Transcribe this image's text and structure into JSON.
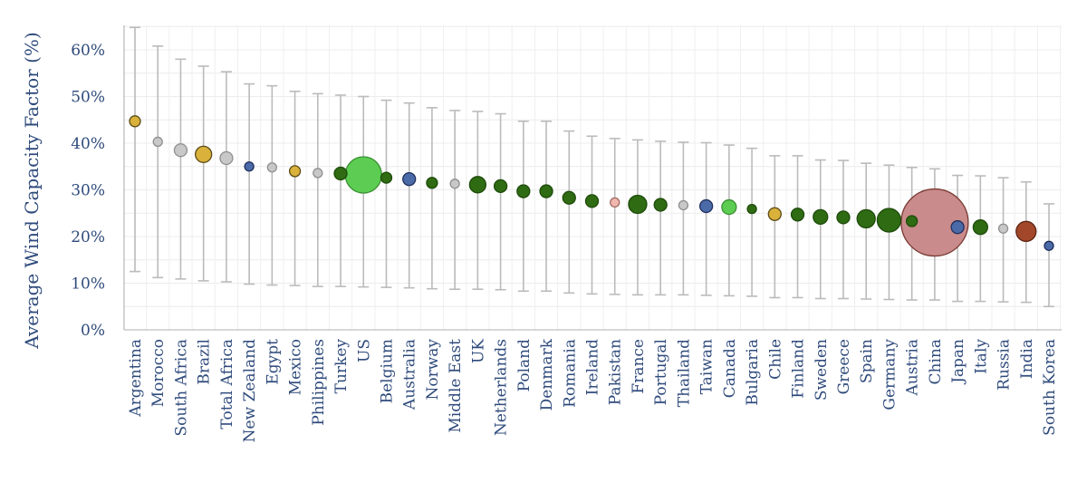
{
  "chart_data": {
    "type": "scatter",
    "title": "",
    "xlabel": "",
    "ylabel": "Average Wind Capacity Factor (%)",
    "ylim": [
      0,
      65
    ],
    "yticks": [
      "0%",
      "10%",
      "20%",
      "30%",
      "40%",
      "50%",
      "60%"
    ],
    "ytick_values": [
      0,
      10,
      20,
      30,
      40,
      50,
      60
    ],
    "grid": true,
    "legend": "none",
    "colors": {
      "dark_green": "#2e6b12",
      "light_green": "#5ccd52",
      "gold": "#d9b13b",
      "grey": "#c8c8c8",
      "blue": "#4b6aa8",
      "pink": "#f2b8b0",
      "rose": "#c98b8b",
      "brown": "#a3472a",
      "whisker": "#bbbbbb",
      "label": "#2f4b7c"
    },
    "points": [
      {
        "category": "Argentina",
        "avg": 44.7,
        "min": 12.5,
        "max": 64.8,
        "size": 6,
        "color": "gold"
      },
      {
        "category": "Morocco",
        "avg": 40.3,
        "min": 11.2,
        "max": 60.8,
        "size": 5,
        "color": "grey"
      },
      {
        "category": "South Africa",
        "avg": 38.5,
        "min": 10.9,
        "max": 58.0,
        "size": 7,
        "color": "grey"
      },
      {
        "category": "Brazil",
        "avg": 37.6,
        "min": 10.5,
        "max": 56.5,
        "size": 9,
        "color": "gold"
      },
      {
        "category": "Total Africa",
        "avg": 36.8,
        "min": 10.3,
        "max": 55.3,
        "size": 7,
        "color": "grey"
      },
      {
        "category": "New Zealand",
        "avg": 35.0,
        "min": 9.8,
        "max": 52.7,
        "size": 5,
        "color": "blue"
      },
      {
        "category": "Egypt",
        "avg": 34.8,
        "min": 9.6,
        "max": 52.3,
        "size": 5,
        "color": "grey"
      },
      {
        "category": "Mexico",
        "avg": 34.0,
        "min": 9.5,
        "max": 51.1,
        "size": 6,
        "color": "gold"
      },
      {
        "category": "Philippines",
        "avg": 33.6,
        "min": 9.3,
        "max": 50.6,
        "size": 5,
        "color": "grey"
      },
      {
        "category": "Turkey",
        "avg": 33.5,
        "min": 9.3,
        "max": 50.3,
        "size": 7,
        "color": "dark_green"
      },
      {
        "category": "US",
        "avg": 33.2,
        "min": 9.2,
        "max": 50.0,
        "size": 20,
        "color": "light_green"
      },
      {
        "category": "Belgium",
        "avg": 32.6,
        "min": 9.1,
        "max": 49.2,
        "size": 6,
        "color": "dark_green"
      },
      {
        "category": "Australia",
        "avg": 32.3,
        "min": 9.0,
        "max": 48.6,
        "size": 7,
        "color": "blue"
      },
      {
        "category": "Norway",
        "avg": 31.5,
        "min": 8.8,
        "max": 47.6,
        "size": 6,
        "color": "dark_green"
      },
      {
        "category": "Middle East",
        "avg": 31.3,
        "min": 8.7,
        "max": 47.0,
        "size": 5,
        "color": "grey"
      },
      {
        "category": "UK",
        "avg": 31.1,
        "min": 8.7,
        "max": 46.8,
        "size": 9,
        "color": "dark_green"
      },
      {
        "category": "Netherlands",
        "avg": 30.8,
        "min": 8.6,
        "max": 46.3,
        "size": 7,
        "color": "dark_green"
      },
      {
        "category": "Poland",
        "avg": 29.7,
        "min": 8.3,
        "max": 44.7,
        "size": 7,
        "color": "dark_green"
      },
      {
        "category": "Denmark",
        "avg": 29.7,
        "min": 8.3,
        "max": 44.7,
        "size": 7,
        "color": "dark_green"
      },
      {
        "category": "Romania",
        "avg": 28.3,
        "min": 7.9,
        "max": 42.6,
        "size": 7,
        "color": "dark_green"
      },
      {
        "category": "Ireland",
        "avg": 27.6,
        "min": 7.7,
        "max": 41.5,
        "size": 7,
        "color": "dark_green"
      },
      {
        "category": "Pakistan",
        "avg": 27.3,
        "min": 7.6,
        "max": 41.0,
        "size": 5,
        "color": "pink"
      },
      {
        "category": "France",
        "avg": 26.9,
        "min": 7.5,
        "max": 40.7,
        "size": 10,
        "color": "dark_green"
      },
      {
        "category": "Portugal",
        "avg": 26.8,
        "min": 7.5,
        "max": 40.4,
        "size": 7,
        "color": "dark_green"
      },
      {
        "category": "Thailand",
        "avg": 26.7,
        "min": 7.5,
        "max": 40.2,
        "size": 5,
        "color": "grey"
      },
      {
        "category": "Taiwan",
        "avg": 26.5,
        "min": 7.4,
        "max": 40.1,
        "size": 7,
        "color": "blue"
      },
      {
        "category": "Canada",
        "avg": 26.3,
        "min": 7.3,
        "max": 39.6,
        "size": 8,
        "color": "light_green"
      },
      {
        "category": "Bulgaria",
        "avg": 25.9,
        "min": 7.2,
        "max": 38.9,
        "size": 5,
        "color": "dark_green"
      },
      {
        "category": "Chile",
        "avg": 24.8,
        "min": 6.9,
        "max": 37.3,
        "size": 7,
        "color": "gold"
      },
      {
        "category": "Finland",
        "avg": 24.7,
        "min": 6.9,
        "max": 37.3,
        "size": 7,
        "color": "dark_green"
      },
      {
        "category": "Sweden",
        "avg": 24.2,
        "min": 6.7,
        "max": 36.4,
        "size": 8,
        "color": "dark_green"
      },
      {
        "category": "Greece",
        "avg": 24.1,
        "min": 6.7,
        "max": 36.3,
        "size": 7,
        "color": "dark_green"
      },
      {
        "category": "Spain",
        "avg": 23.8,
        "min": 6.6,
        "max": 35.7,
        "size": 10,
        "color": "dark_green"
      },
      {
        "category": "Germany",
        "avg": 23.5,
        "min": 6.5,
        "max": 35.3,
        "size": 13,
        "color": "dark_green"
      },
      {
        "category": "Austria",
        "avg": 23.3,
        "min": 6.4,
        "max": 34.8,
        "size": 6,
        "color": "dark_green"
      },
      {
        "category": "China",
        "avg": 23.0,
        "min": 6.4,
        "max": 34.5,
        "size": 37,
        "color": "rose"
      },
      {
        "category": "Japan",
        "avg": 22.0,
        "min": 6.1,
        "max": 33.1,
        "size": 7,
        "color": "blue"
      },
      {
        "category": "Italy",
        "avg": 22.0,
        "min": 6.1,
        "max": 33.0,
        "size": 8,
        "color": "dark_green"
      },
      {
        "category": "Russia",
        "avg": 21.7,
        "min": 6.0,
        "max": 32.6,
        "size": 5,
        "color": "grey"
      },
      {
        "category": "India",
        "avg": 21.1,
        "min": 5.9,
        "max": 31.7,
        "size": 11,
        "color": "brown"
      },
      {
        "category": "South Korea",
        "avg": 18.0,
        "min": 5.0,
        "max": 27.0,
        "size": 5,
        "color": "blue"
      }
    ]
  }
}
